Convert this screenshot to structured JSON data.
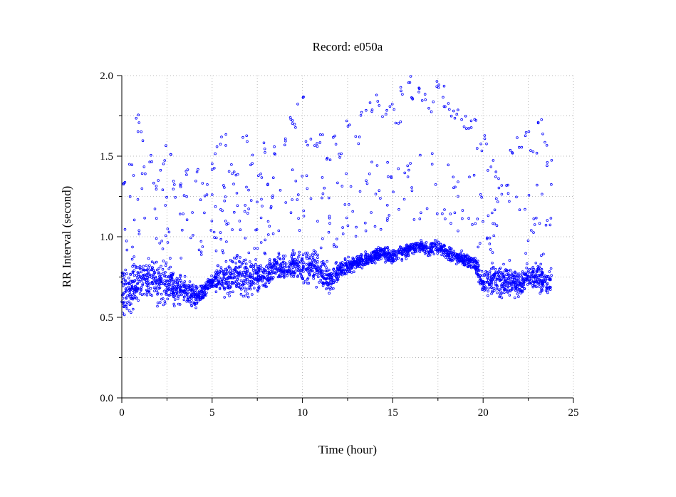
{
  "chart_data": {
    "type": "scatter",
    "title": "Record:  e050a",
    "xlabel": "Time (hour)",
    "ylabel": "RR Interval (second)",
    "xlim": [
      0,
      25
    ],
    "ylim": [
      0,
      2
    ],
    "xticks": [
      0,
      5,
      10,
      15,
      20,
      25
    ],
    "xtick_labels": [
      "0",
      "5",
      "10",
      "15",
      "20",
      "25"
    ],
    "yticks": [
      0,
      0.5,
      1,
      1.5,
      2
    ],
    "ytick_labels": [
      "0.0",
      "0.5",
      "1.0",
      "1.5",
      "2.0"
    ],
    "grid": true,
    "marker": "open-circle",
    "color": "#0000ff",
    "series": [
      {
        "band_x": [
          0,
          0.5,
          1,
          1.5,
          2,
          2.5,
          3,
          3.5,
          4,
          4.5,
          5,
          5.5,
          6,
          6.5,
          7,
          7.5,
          8,
          8.5,
          9,
          9.5,
          10,
          10.5,
          11,
          11.5,
          12,
          12.5,
          13,
          13.5,
          14,
          14.5,
          15,
          15.5,
          16,
          16.5,
          17,
          17.5,
          18,
          18.5,
          19,
          19.5,
          20,
          20.5,
          21,
          21.5,
          22,
          22.5,
          23,
          23.5,
          23.8
        ],
        "band_center": [
          0.66,
          0.68,
          0.72,
          0.74,
          0.7,
          0.72,
          0.68,
          0.67,
          0.62,
          0.66,
          0.72,
          0.75,
          0.73,
          0.76,
          0.74,
          0.76,
          0.74,
          0.82,
          0.8,
          0.83,
          0.8,
          0.82,
          0.8,
          0.72,
          0.78,
          0.82,
          0.84,
          0.86,
          0.88,
          0.9,
          0.87,
          0.9,
          0.93,
          0.94,
          0.92,
          0.94,
          0.9,
          0.88,
          0.86,
          0.84,
          0.72,
          0.74,
          0.72,
          0.74,
          0.7,
          0.76,
          0.74,
          0.72,
          0.73
        ],
        "band_spread": [
          0.24,
          0.22,
          0.2,
          0.2,
          0.18,
          0.18,
          0.14,
          0.12,
          0.1,
          0.08,
          0.06,
          0.14,
          0.16,
          0.18,
          0.16,
          0.14,
          0.1,
          0.1,
          0.12,
          0.12,
          0.14,
          0.14,
          0.16,
          0.12,
          0.08,
          0.06,
          0.06,
          0.06,
          0.06,
          0.06,
          0.06,
          0.06,
          0.06,
          0.06,
          0.05,
          0.06,
          0.06,
          0.06,
          0.06,
          0.06,
          0.1,
          0.12,
          0.14,
          0.14,
          0.12,
          0.12,
          0.12,
          0.12,
          0.12
        ],
        "outlier_x": [
          0.2,
          0.5,
          0.9,
          1.0,
          1.3,
          1.6,
          1.9,
          2.3,
          2.6,
          2.8,
          3.3,
          3.7,
          4.2,
          4.6,
          5.0,
          5.3,
          5.6,
          6.0,
          6.3,
          6.8,
          7.2,
          7.6,
          8.0,
          8.5,
          9.0,
          9.3,
          9.6,
          9.9,
          10.3,
          10.7,
          11.0,
          11.4,
          11.8,
          12.2,
          12.6,
          13.0,
          13.4,
          13.8,
          14.2,
          14.6,
          15.0,
          15.3,
          15.6,
          15.9,
          16.2,
          16.5,
          16.8,
          17.1,
          17.4,
          17.7,
          18.0,
          18.3,
          18.6,
          18.9,
          19.2,
          19.5,
          19.8,
          20.1,
          20.4,
          20.8,
          21.2,
          21.6,
          22.0,
          22.4,
          22.8,
          23.1,
          23.4,
          23.7
        ],
        "outlier_y": [
          1.3,
          1.42,
          1.73,
          1.62,
          1.4,
          1.47,
          1.35,
          1.45,
          1.55,
          1.32,
          1.3,
          1.4,
          1.38,
          1.3,
          1.45,
          1.55,
          1.6,
          1.42,
          1.38,
          1.62,
          1.48,
          1.4,
          1.55,
          1.52,
          1.6,
          1.75,
          1.7,
          1.85,
          1.6,
          1.55,
          1.62,
          1.5,
          1.6,
          1.52,
          1.7,
          1.6,
          1.75,
          1.8,
          1.85,
          1.75,
          1.82,
          1.7,
          1.9,
          1.98,
          1.85,
          1.92,
          1.88,
          1.8,
          1.95,
          1.9,
          1.82,
          1.78,
          1.75,
          1.72,
          1.65,
          1.7,
          1.55,
          1.6,
          1.45,
          1.4,
          1.3,
          1.5,
          1.58,
          1.62,
          1.55,
          1.72,
          1.6,
          1.48
        ]
      }
    ]
  }
}
